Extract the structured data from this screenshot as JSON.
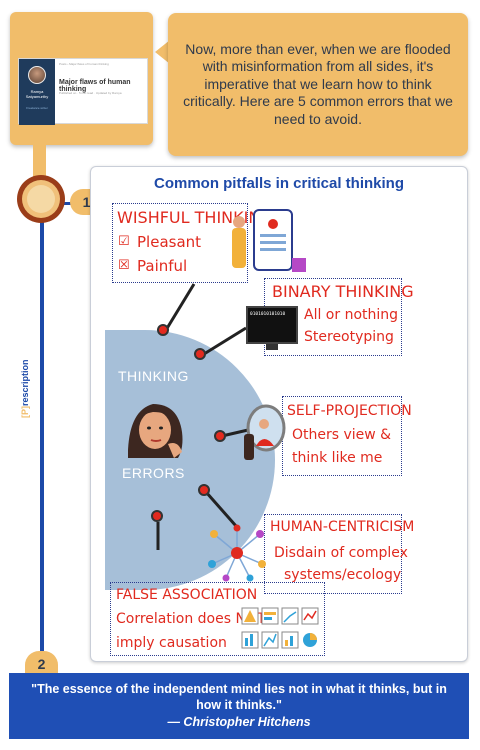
{
  "thumbnail": {
    "author_name": "Ramya Satyamurthy",
    "author_role": "Freelance writer",
    "breadcrumb": "Posts › Major flaws of human thinking",
    "article_title": "Major flaws of human thinking",
    "article_meta": "Published on · 5 min read · Updated by Ramya"
  },
  "bubble": {
    "text": "Now, more than ever, when we are flooded with misinformation from all sides, it's imperative that we learn how to think critically. Here are 5 common errors that we need to avoid."
  },
  "timeline": {
    "step1": "1",
    "step2": "2",
    "brand_bracket": "[P]",
    "brand_text": "rescription"
  },
  "infographic": {
    "title": "Common pitfalls in critical thinking",
    "center": {
      "top": "THINKING",
      "bottom": "ERRORS"
    },
    "wishful": {
      "title": "WISHFUL THINKING",
      "line1": "Pleasant",
      "line2": "Painful"
    },
    "binary": {
      "title": "BINARY THINKING",
      "line1": "All or nothing",
      "line2": "Stereotyping",
      "screen": "0101010101010"
    },
    "projection": {
      "title": "SELF-PROJECTION",
      "line1": "Others view &",
      "line2": "think like me"
    },
    "centrism": {
      "title": "HUMAN-CENTRICISM",
      "line1": "Disdain of complex",
      "line2": "systems/ecology"
    },
    "association": {
      "title": "FALSE ASSOCIATION",
      "line1": "Correlation does NOT",
      "line2": "imply causation"
    }
  },
  "quote": {
    "text": "\"The essence of the independent mind lies not in what it thinks, but in how it thinks.\"",
    "author": "— Christopher Hitchens"
  },
  "colors": {
    "accent": "#f1bd6a",
    "timeline": "#1c49a8",
    "marker_red": "#e02a1f"
  }
}
